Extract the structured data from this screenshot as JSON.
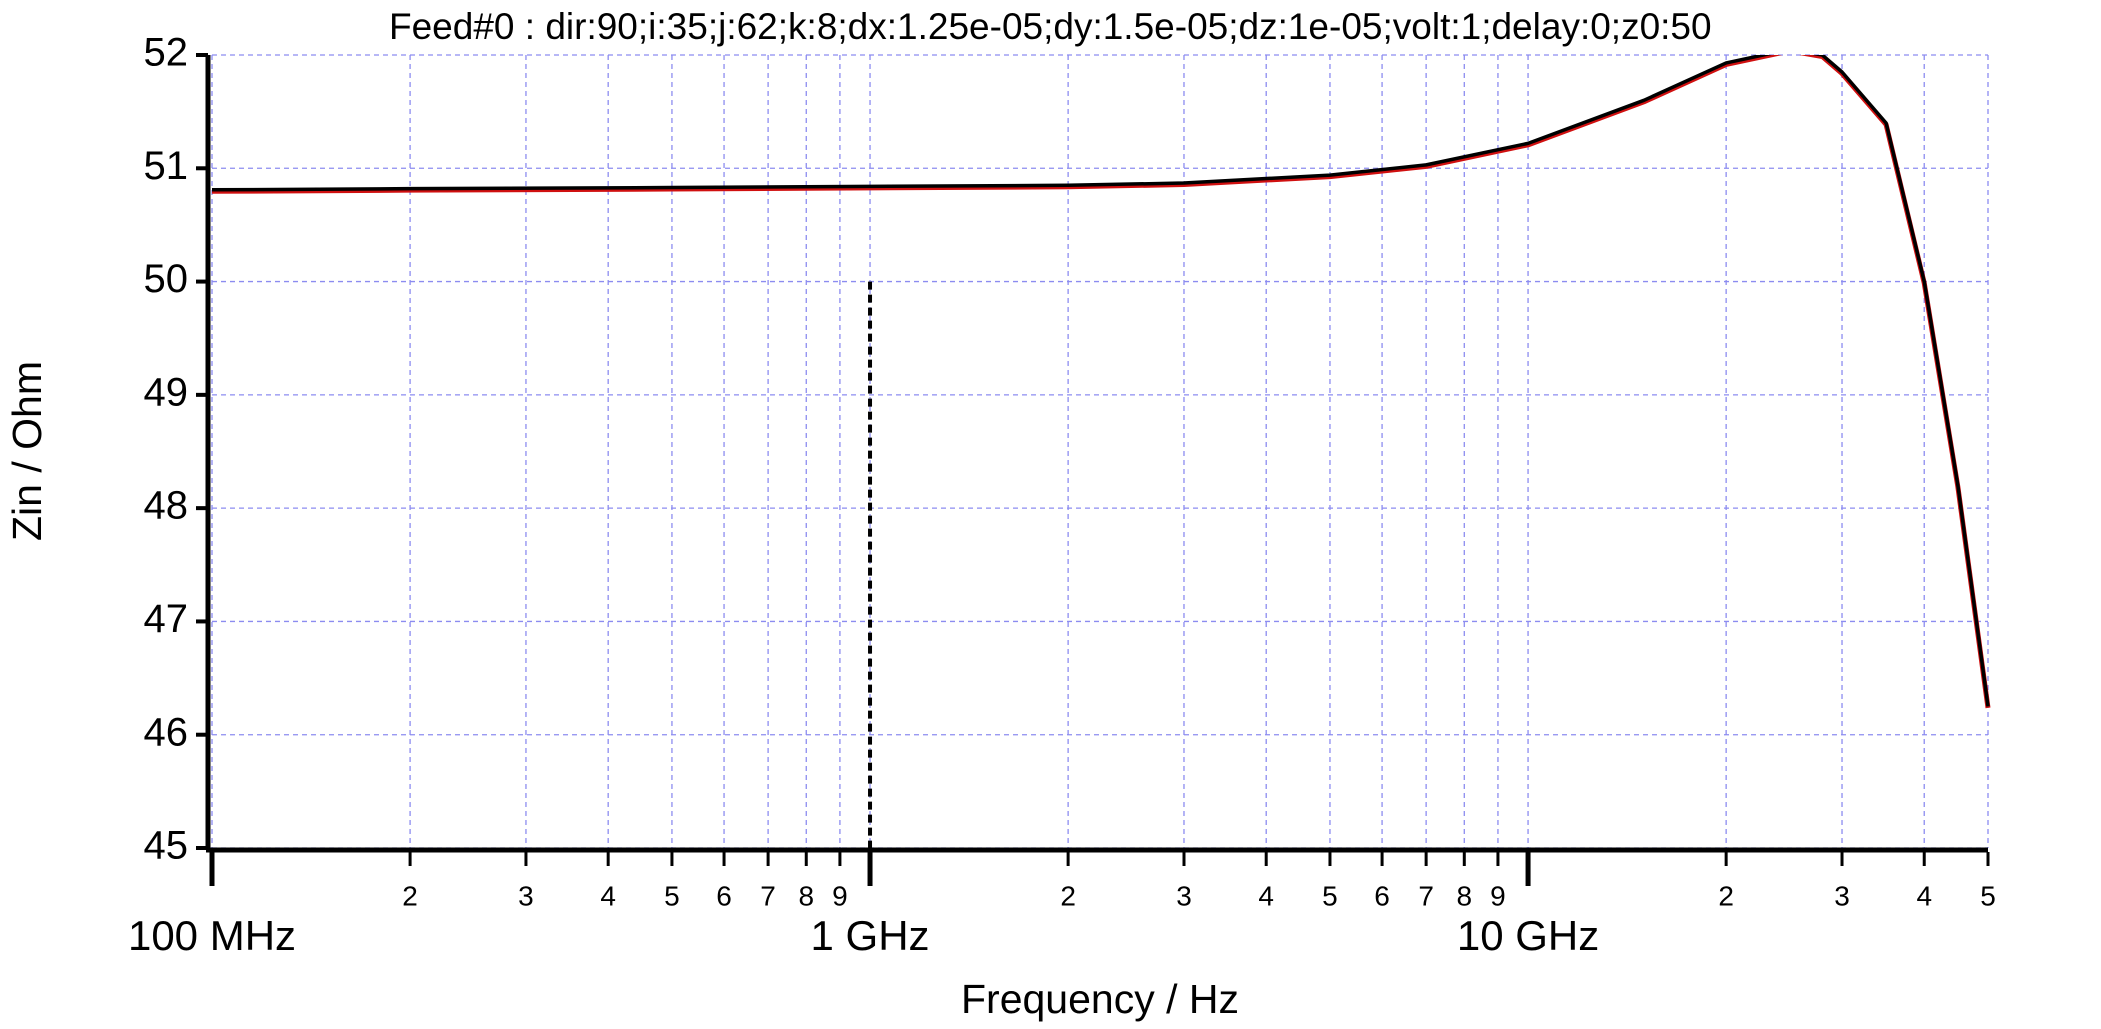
{
  "chart_data": {
    "type": "line",
    "title": "Feed#0 : dir:90;i:35;j:62;k:8;dx:1.25e-05;dy:1.5e-05;dz:1e-05;volt:1;delay:0;z0:50",
    "x_label": "Frequency / Hz",
    "y_label": "Zin / Ohm",
    "xscale": "log",
    "grid": true,
    "x": [
      100000000,
      200000000,
      500000000,
      1000000000,
      2000000000,
      3000000000,
      5000000000,
      7000000000,
      10000000000,
      15000000000,
      20000000000,
      25000000000,
      28000000000,
      30000000000,
      35000000000,
      40000000000,
      45000000000,
      50000000000
    ],
    "series": [
      {
        "color": "#d01010",
        "values": [
          50.81,
          50.82,
          50.83,
          50.84,
          50.85,
          50.87,
          50.94,
          51.03,
          51.22,
          51.6,
          51.93,
          52.05,
          52.0,
          51.85,
          51.4,
          50.0,
          48.2,
          46.25
        ]
      },
      {
        "color": "#000000",
        "values": [
          50.81,
          50.82,
          50.83,
          50.84,
          50.85,
          50.87,
          50.94,
          51.03,
          51.22,
          51.6,
          51.93,
          52.05,
          52.0,
          51.85,
          51.4,
          50.0,
          48.2,
          46.25
        ]
      }
    ],
    "vline": {
      "x": 1000000000,
      "ymax": 50
    },
    "xlim": [
      100000000,
      50000000000
    ],
    "ylim": [
      45,
      52
    ],
    "yticks": [
      45,
      46,
      47,
      48,
      49,
      50,
      51,
      52
    ],
    "xticks": [
      {
        "value": 100000000,
        "label": "100 MHz"
      },
      {
        "value": 200000000,
        "label": "2"
      },
      {
        "value": 300000000,
        "label": "3"
      },
      {
        "value": 400000000,
        "label": "4"
      },
      {
        "value": 500000000,
        "label": "5"
      },
      {
        "value": 600000000,
        "label": "6"
      },
      {
        "value": 700000000,
        "label": "7"
      },
      {
        "value": 800000000,
        "label": "8"
      },
      {
        "value": 900000000,
        "label": "9"
      },
      {
        "value": 1000000000,
        "label": "1 GHz"
      },
      {
        "value": 2000000000,
        "label": "2"
      },
      {
        "value": 3000000000,
        "label": "3"
      },
      {
        "value": 4000000000,
        "label": "4"
      },
      {
        "value": 5000000000,
        "label": "5"
      },
      {
        "value": 6000000000,
        "label": "6"
      },
      {
        "value": 7000000000,
        "label": "7"
      },
      {
        "value": 8000000000,
        "label": "8"
      },
      {
        "value": 9000000000,
        "label": "9"
      },
      {
        "value": 10000000000,
        "label": "10 GHz"
      },
      {
        "value": 20000000000,
        "label": "2"
      },
      {
        "value": 30000000000,
        "label": "3"
      },
      {
        "value": 40000000000,
        "label": "4"
      },
      {
        "value": 50000000000,
        "label": "5"
      }
    ]
  }
}
